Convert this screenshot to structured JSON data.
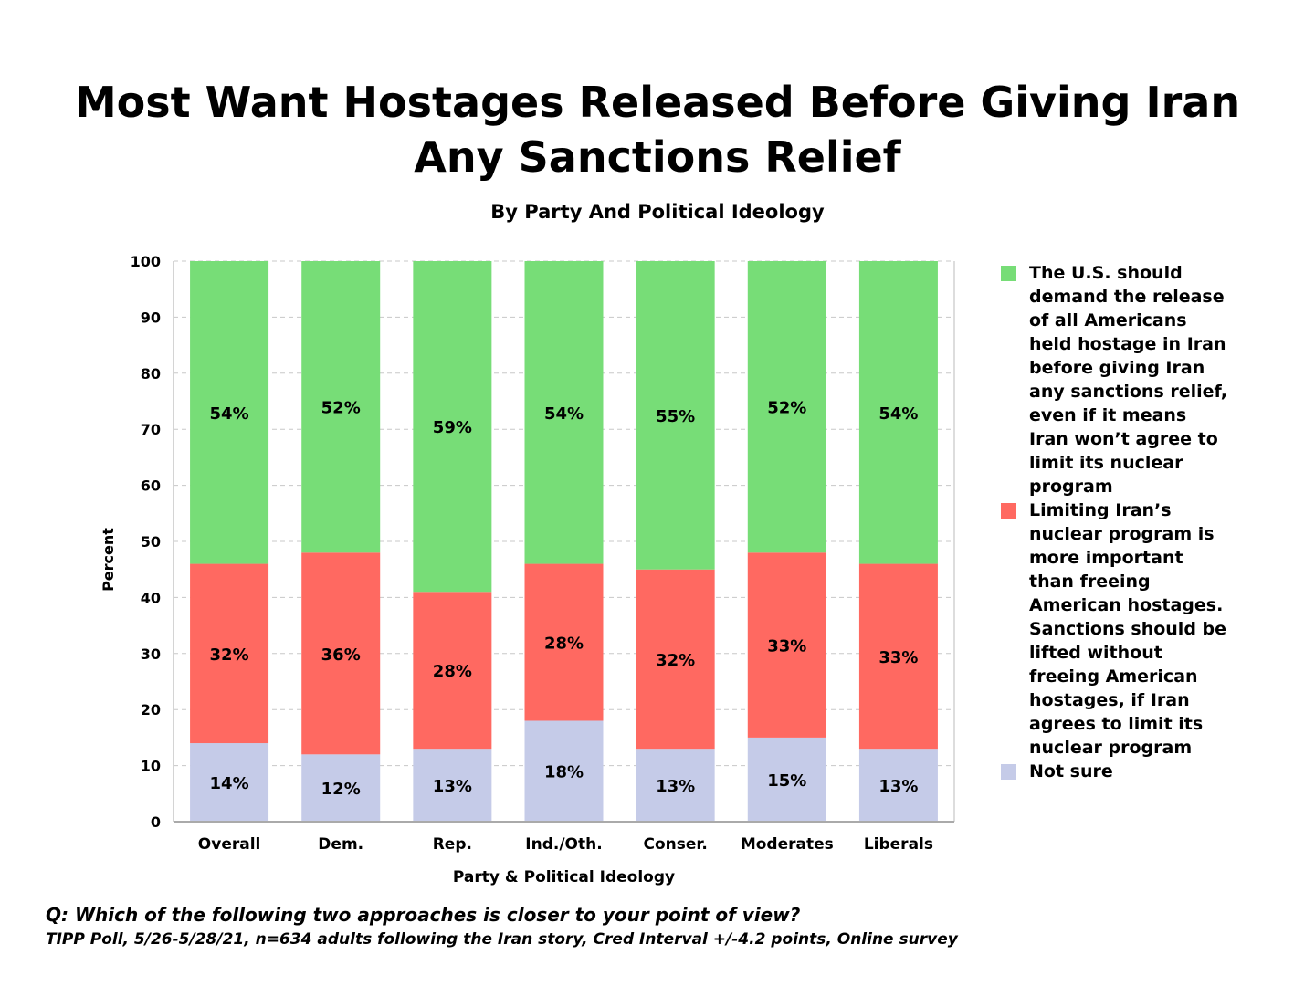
{
  "chart_data": {
    "type": "bar",
    "stacked": true,
    "title": "Most Want Hostages Released Before Giving Iran Any Sanctions Relief",
    "subtitle": "By Party And Political Ideology",
    "xlabel": "Party & Political Ideology",
    "ylabel": "Percent",
    "ylim": [
      0,
      100
    ],
    "yticks": [
      0,
      10,
      20,
      30,
      40,
      50,
      60,
      70,
      80,
      90,
      100
    ],
    "grid": true,
    "legend_position": "right",
    "categories": [
      "Overall",
      "Dem.",
      "Rep.",
      "Ind./Oth.",
      "Conser.",
      "Moderates",
      "Liberals"
    ],
    "series": [
      {
        "name": "Not sure",
        "color": "#c5cbe8",
        "values": [
          14,
          12,
          13,
          18,
          13,
          15,
          13
        ]
      },
      {
        "name": "Limiting Iran’s nuclear program is more important than freeing American hostages. Sanctions should be lifted without freeing American hostages, if Iran agrees to limit its nuclear program",
        "color": "#ff6961",
        "values": [
          32,
          36,
          28,
          28,
          32,
          33,
          33
        ]
      },
      {
        "name": "The U.S. should demand the release of all Americans held hostage in Iran before giving Iran any sanctions relief, even if it means Iran won’t agree to limit its nuclear program",
        "color": "#77dd77",
        "values": [
          54,
          52,
          59,
          54,
          55,
          52,
          54
        ]
      }
    ]
  },
  "title_line1": "Most Want Hostages Released Before Giving Iran",
  "title_line2": "Any Sanctions Relief",
  "legend": [
    {
      "label": "The U.S. should demand the release of all Americans held hostage in Iran before giving Iran any sanctions relief, even if it means Iran won’t agree to limit its nuclear program",
      "color": "#77dd77"
    },
    {
      "label": "Limiting Iran’s nuclear program is more important than freeing American hostages. Sanctions should be lifted without freeing American hostages, if Iran agrees to limit its nuclear program",
      "color": "#ff6961"
    },
    {
      "label": "Not sure",
      "color": "#c5cbe8"
    }
  ],
  "footer": {
    "question": "Q:  Which of the following two approaches is closer to your point of view?",
    "source": "TIPP Poll, 5/26-5/28/21, n=634 adults following the Iran story, Cred Interval +/-4.2 points, Online survey"
  }
}
